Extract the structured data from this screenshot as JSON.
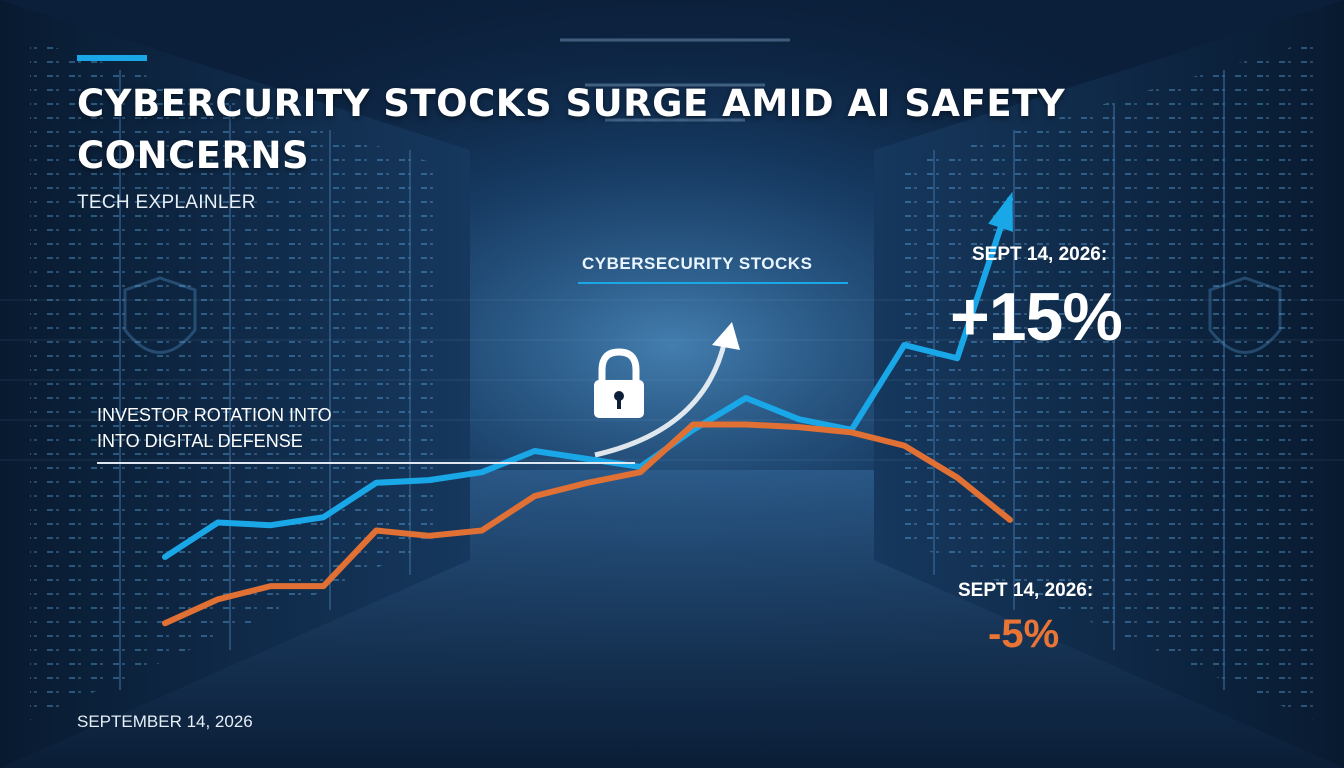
{
  "headline": "CYBERCURITY STOCKS SURGE AMID AI SAFETY CONCERNS",
  "kicker": "TECH EXPLAINLER",
  "footer_date": "SEPTEMBER 14, 2026",
  "callouts": {
    "series_tag": "CYBERSECURITY STOCKS",
    "rotation_line1": "INVESTOR ROTATION INTO",
    "rotation_line2": "INTO DIGITAL DEFENSE",
    "up_date": "SEPT 14, 2026:",
    "up_value": "+15%",
    "down_date": "SEPT 14, 2026:",
    "down_value": "-5%"
  },
  "colors": {
    "accent": "#19a7e8",
    "cyber_line": "#19a7e8",
    "other_line": "#e07033",
    "background": "#0b1f3a"
  },
  "icons": [
    "padlock-icon",
    "shield-icon",
    "trend-arrow-icon",
    "server-racks-background"
  ],
  "chart_data": {
    "type": "line",
    "title": "",
    "xlabel": "",
    "ylabel": "",
    "x": [
      0,
      1,
      2,
      3,
      4,
      5,
      6,
      7,
      8,
      9,
      10,
      11,
      12,
      13,
      14,
      15,
      16
    ],
    "ylim": [
      0,
      100
    ],
    "grid": true,
    "legend": "none",
    "series": [
      {
        "name": "CYBERSECURITY STOCKS",
        "color": "#19a7e8",
        "values": [
          20,
          33,
          32,
          35,
          48,
          49,
          52,
          60,
          57,
          54,
          68,
          80,
          72,
          68,
          100,
          95,
          155
        ],
        "arrow_end": true
      },
      {
        "color": "#e07033",
        "values": [
          -5,
          4,
          9,
          9,
          30,
          28,
          30,
          43,
          48,
          52,
          70,
          70,
          69,
          67,
          62,
          50,
          34
        ]
      }
    ]
  }
}
